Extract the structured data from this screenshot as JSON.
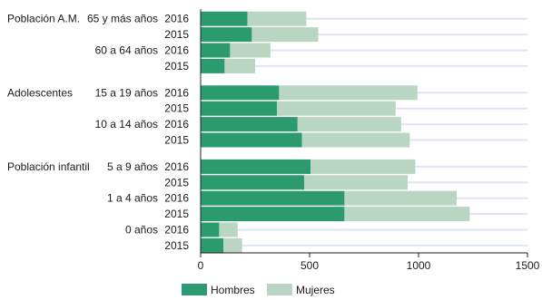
{
  "colors": {
    "hombres": "#2b9a6e",
    "mujeres": "#b9d6c2",
    "gridline": "#dde6f0"
  },
  "chart_data": {
    "type": "bar",
    "orientation": "horizontal",
    "stacked": true,
    "xlim": [
      0,
      1500
    ],
    "x_ticks": [
      "0",
      "500",
      "1000",
      "1500"
    ],
    "grid": true,
    "legend_position": "bottom",
    "series": [
      {
        "name": "Hombres",
        "color": "#2b9a6e"
      },
      {
        "name": "Mujeres",
        "color": "#b9d6c2"
      }
    ],
    "groups": [
      {
        "label": "Población A.M.",
        "subgroups": [
          {
            "label": "65 y más años",
            "rows": [
              {
                "year": "2016",
                "hombres": 215,
                "mujeres": 270
              },
              {
                "year": "2015",
                "hombres": 235,
                "mujeres": 305
              }
            ]
          },
          {
            "label": "60 a 64 años",
            "rows": [
              {
                "year": "2016",
                "hombres": 135,
                "mujeres": 185
              },
              {
                "year": "2015",
                "hombres": 110,
                "mujeres": 140
              }
            ]
          }
        ]
      },
      {
        "label": "Adolescentes",
        "subgroups": [
          {
            "label": "15 a 19 años",
            "rows": [
              {
                "year": "2016",
                "hombres": 360,
                "mujeres": 635
              },
              {
                "year": "2015",
                "hombres": 350,
                "mujeres": 545
              }
            ]
          },
          {
            "label": "10 a 14 años",
            "rows": [
              {
                "year": "2016",
                "hombres": 445,
                "mujeres": 475
              },
              {
                "year": "2015",
                "hombres": 465,
                "mujeres": 495
              }
            ]
          }
        ]
      },
      {
        "label": "Población infantil",
        "subgroups": [
          {
            "label": "5 a 9 años",
            "rows": [
              {
                "year": "2016",
                "hombres": 505,
                "mujeres": 480
              },
              {
                "year": "2015",
                "hombres": 475,
                "mujeres": 475
              }
            ]
          },
          {
            "label": "1 a 4 años",
            "rows": [
              {
                "year": "2016",
                "hombres": 660,
                "mujeres": 515
              },
              {
                "year": "2015",
                "hombres": 660,
                "mujeres": 575
              }
            ]
          },
          {
            "label": "0 años",
            "rows": [
              {
                "year": "2016",
                "hombres": 85,
                "mujeres": 85
              },
              {
                "year": "2015",
                "hombres": 105,
                "mujeres": 85
              }
            ]
          }
        ]
      }
    ]
  }
}
